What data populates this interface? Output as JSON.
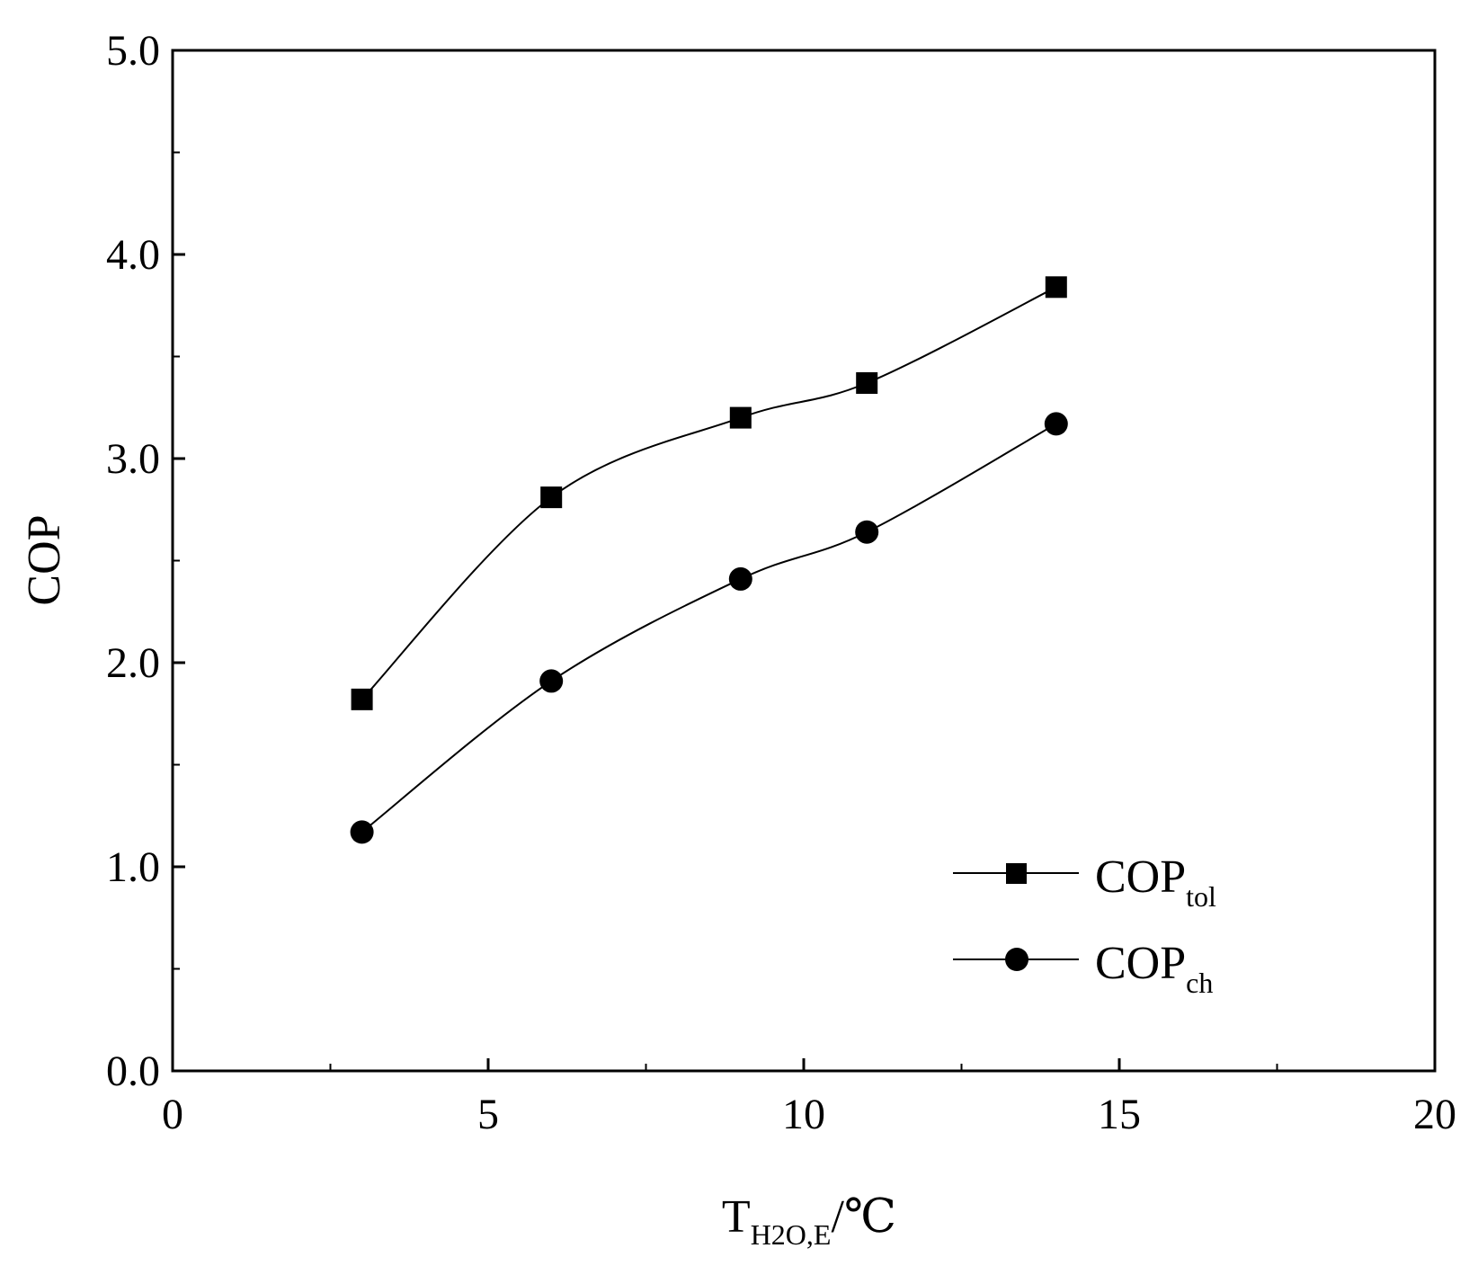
{
  "chart_data": {
    "type": "line",
    "title": "",
    "xlabel": {
      "main": "T",
      "sub": "H2O,E",
      "suffix": "/℃"
    },
    "ylabel": "COP",
    "xlim": [
      0,
      20
    ],
    "ylim": [
      0,
      5
    ],
    "x_ticks": [
      "0",
      "5",
      "10",
      "15",
      "20"
    ],
    "y_ticks": [
      "0.0",
      "1.0",
      "2.0",
      "3.0",
      "4.0",
      "5.0"
    ],
    "grid": false,
    "legend_position": "bottom-right",
    "series": [
      {
        "name": "COPtol",
        "label_main": "COP",
        "label_sub": "tol",
        "marker": "square",
        "x": [
          3,
          6,
          9,
          11,
          14
        ],
        "y": [
          1.82,
          2.81,
          3.2,
          3.37,
          3.84
        ]
      },
      {
        "name": "COPch",
        "label_main": "COP",
        "label_sub": "ch",
        "marker": "circle",
        "x": [
          3,
          6,
          9,
          11,
          14
        ],
        "y": [
          1.17,
          1.91,
          2.41,
          2.64,
          3.17
        ]
      }
    ]
  },
  "colors": {
    "ink": "#000000",
    "background": "#ffffff"
  }
}
